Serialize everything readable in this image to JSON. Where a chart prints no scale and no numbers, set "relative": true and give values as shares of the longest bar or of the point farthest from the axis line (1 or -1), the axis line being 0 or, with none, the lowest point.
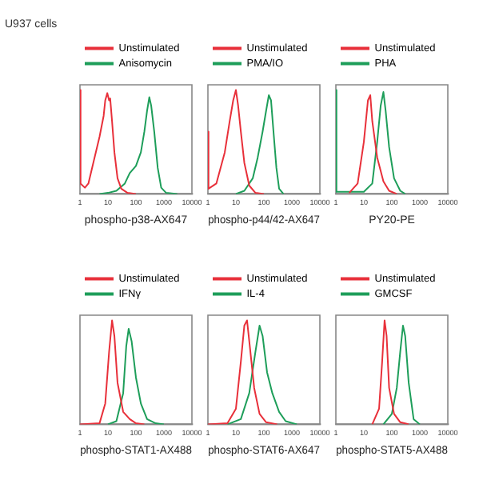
{
  "chart_data": [
    {
      "type": "line",
      "title": "U937 cells",
      "xlabel": "phospho-p38-AX647",
      "log": "x",
      "relative": true,
      "xlim": [
        1,
        10000
      ],
      "xticks": [
        1,
        10,
        100,
        1000,
        10000
      ],
      "tick_labels": "x",
      "grid": false,
      "legend": "top",
      "marker": "none",
      "series": [
        {
          "name": "Unstimulated",
          "color": "#e8303a",
          "x": [
            1,
            1.05,
            1.5,
            2,
            3,
            5,
            7,
            8,
            9.5,
            11,
            12,
            14,
            17,
            22,
            30,
            50,
            100
          ],
          "values": [
            1,
            0.1,
            0.06,
            0.1,
            0.3,
            0.55,
            0.75,
            0.9,
            0.97,
            0.9,
            0.92,
            0.7,
            0.4,
            0.15,
            0.05,
            0.01,
            0
          ]
        },
        {
          "name": "Anisomycin",
          "color": "#1e9e5a",
          "x": [
            5,
            10,
            20,
            40,
            60,
            100,
            150,
            200,
            250,
            300,
            350,
            450,
            600,
            800,
            1200,
            3000
          ],
          "values": [
            0,
            0.01,
            0.03,
            0.1,
            0.2,
            0.27,
            0.4,
            0.6,
            0.8,
            0.93,
            0.85,
            0.6,
            0.25,
            0.06,
            0.01,
            0
          ]
        }
      ]
    },
    {
      "type": "line",
      "xlabel": "phospho-p44/42-AX647",
      "log": "x",
      "relative": true,
      "xlim": [
        1,
        10000
      ],
      "xticks": [
        1,
        10,
        100,
        1000,
        10000
      ],
      "tick_labels": "x",
      "grid": false,
      "legend": "top",
      "marker": "none",
      "series": [
        {
          "name": "Unstimulated",
          "color": "#e8303a",
          "x": [
            1,
            1.05,
            2,
            4,
            6,
            8,
            10,
            12,
            15,
            20,
            30,
            50,
            100
          ],
          "values": [
            0.6,
            0.05,
            0.1,
            0.4,
            0.7,
            0.9,
            1,
            0.85,
            0.6,
            0.3,
            0.08,
            0.01,
            0
          ]
        },
        {
          "name": "PMA/IO",
          "color": "#1e9e5a",
          "x": [
            10,
            20,
            40,
            60,
            90,
            120,
            150,
            180,
            220,
            280,
            350,
            500
          ],
          "values": [
            0,
            0.03,
            0.15,
            0.35,
            0.6,
            0.8,
            0.95,
            0.9,
            0.6,
            0.25,
            0.05,
            0
          ]
        }
      ]
    },
    {
      "type": "line",
      "xlabel": "PY20-PE",
      "log": "x",
      "relative": true,
      "xlim": [
        1,
        10000
      ],
      "xticks": [
        1,
        10,
        100,
        1000,
        10000
      ],
      "tick_labels": "x",
      "grid": false,
      "legend": "top",
      "marker": "none",
      "series": [
        {
          "name": "Unstimulated",
          "color": "#e8303a",
          "x": [
            3,
            6,
            10,
            14,
            17,
            20,
            30,
            50,
            80,
            150
          ],
          "values": [
            0.01,
            0.1,
            0.5,
            0.9,
            0.95,
            0.7,
            0.35,
            0.12,
            0.03,
            0
          ]
        },
        {
          "name": "PHA",
          "color": "#1e9e5a",
          "x": [
            1,
            1.05,
            10,
            20,
            30,
            40,
            50,
            60,
            80,
            120,
            200,
            300
          ],
          "values": [
            1,
            0.02,
            0.02,
            0.1,
            0.5,
            0.85,
            0.98,
            0.8,
            0.45,
            0.15,
            0.03,
            0
          ]
        }
      ]
    },
    {
      "type": "line",
      "xlabel": "phospho-STAT1-AX488",
      "log": "x",
      "relative": true,
      "xlim": [
        1,
        10000
      ],
      "xticks": [
        1,
        10,
        100,
        1000,
        10000
      ],
      "tick_labels": "x",
      "grid": false,
      "legend": "top",
      "marker": "none",
      "series": [
        {
          "name": "Unstimulated",
          "color": "#e8303a",
          "x": [
            1,
            5,
            8,
            11,
            14,
            17,
            22,
            35,
            60,
            100,
            200
          ],
          "values": [
            0,
            0.01,
            0.2,
            0.7,
            1,
            0.85,
            0.4,
            0.12,
            0.05,
            0.01,
            0
          ]
        },
        {
          "name": "IFNγ",
          "color": "#1e9e5a",
          "x": [
            10,
            20,
            35,
            45,
            55,
            70,
            100,
            150,
            250,
            500,
            1000
          ],
          "values": [
            0,
            0.03,
            0.3,
            0.75,
            0.92,
            0.8,
            0.45,
            0.2,
            0.05,
            0.01,
            0
          ]
        }
      ]
    },
    {
      "type": "line",
      "xlabel": "phospho-STAT6-AX647",
      "log": "x",
      "relative": true,
      "xlim": [
        1,
        10000
      ],
      "xticks": [
        1,
        10,
        100,
        1000,
        10000
      ],
      "tick_labels": "x",
      "grid": false,
      "legend": "top",
      "marker": "none",
      "series": [
        {
          "name": "Unstimulated",
          "color": "#e8303a",
          "x": [
            1,
            5,
            10,
            15,
            20,
            25,
            30,
            45,
            70,
            120,
            300
          ],
          "values": [
            0,
            0.01,
            0.15,
            0.6,
            0.95,
            1,
            0.8,
            0.35,
            0.1,
            0.02,
            0
          ]
        },
        {
          "name": "IL-4",
          "color": "#1e9e5a",
          "x": [
            5,
            15,
            30,
            50,
            70,
            90,
            130,
            200,
            350,
            600,
            1500
          ],
          "values": [
            0,
            0.05,
            0.3,
            0.7,
            0.95,
            0.85,
            0.5,
            0.3,
            0.12,
            0.03,
            0
          ]
        }
      ]
    },
    {
      "type": "line",
      "xlabel": "phospho-STAT5-AX488",
      "log": "x",
      "relative": true,
      "xlim": [
        1,
        10000
      ],
      "xticks": [
        1,
        10,
        100,
        1000,
        10000
      ],
      "tick_labels": "x",
      "grid": false,
      "legend": "top",
      "marker": "none",
      "series": [
        {
          "name": "Unstimulated",
          "color": "#e8303a",
          "x": [
            20,
            35,
            45,
            55,
            65,
            80,
            120,
            200,
            400
          ],
          "values": [
            0,
            0.15,
            0.6,
            1,
            0.85,
            0.35,
            0.1,
            0.02,
            0
          ]
        },
        {
          "name": "GMCSF",
          "color": "#1e9e5a",
          "x": [
            50,
            100,
            150,
            200,
            250,
            300,
            400,
            600,
            1000
          ],
          "values": [
            0,
            0.1,
            0.35,
            0.7,
            0.95,
            0.85,
            0.4,
            0.05,
            0
          ]
        }
      ]
    }
  ]
}
